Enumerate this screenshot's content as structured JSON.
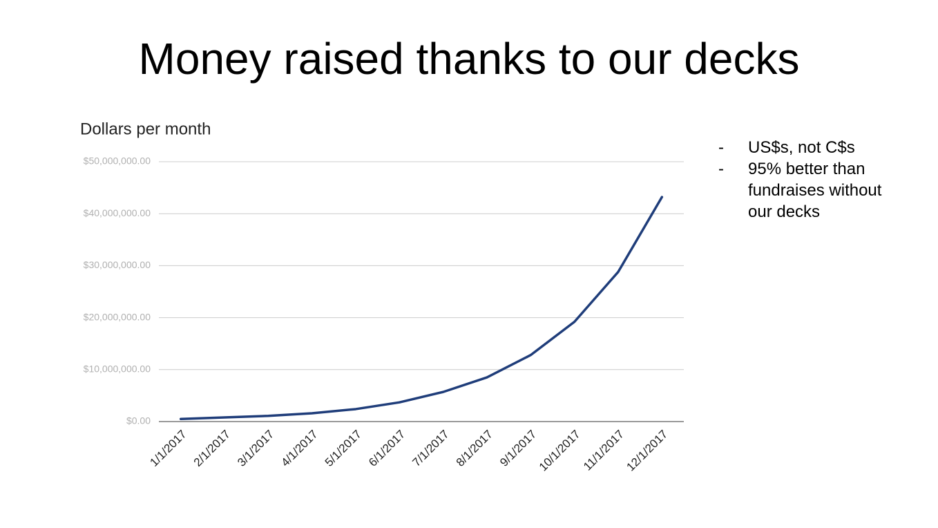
{
  "chart_data": {
    "type": "line",
    "title": "Money raised thanks to our decks",
    "subtitle": "Dollars per month",
    "categories": [
      "1/1/2017",
      "2/1/2017",
      "3/1/2017",
      "4/1/2017",
      "5/1/2017",
      "6/1/2017",
      "7/1/2017",
      "8/1/2017",
      "9/1/2017",
      "10/1/2017",
      "11/1/2017",
      "12/1/2017"
    ],
    "series": [
      {
        "name": "Dollars per month",
        "color": "#1f3d7a",
        "values": [
          500000,
          800000,
          1100000,
          1600000,
          2400000,
          3700000,
          5700000,
          8500000,
          12800000,
          19200000,
          28800000,
          43200000
        ]
      }
    ],
    "ylim": [
      0,
      50000000
    ],
    "yticks": [
      {
        "value": 0,
        "label": "$0.00"
      },
      {
        "value": 10000000,
        "label": "$10,000,000.00"
      },
      {
        "value": 20000000,
        "label": "$20,000,000.00"
      },
      {
        "value": 30000000,
        "label": "$30,000,000.00"
      },
      {
        "value": 40000000,
        "label": "$40,000,000.00"
      },
      {
        "value": 50000000,
        "label": "$50,000,000.00"
      }
    ],
    "grid": true,
    "annotations": [
      "US$s, not C$s",
      "95% better than fundraises without our decks"
    ]
  }
}
